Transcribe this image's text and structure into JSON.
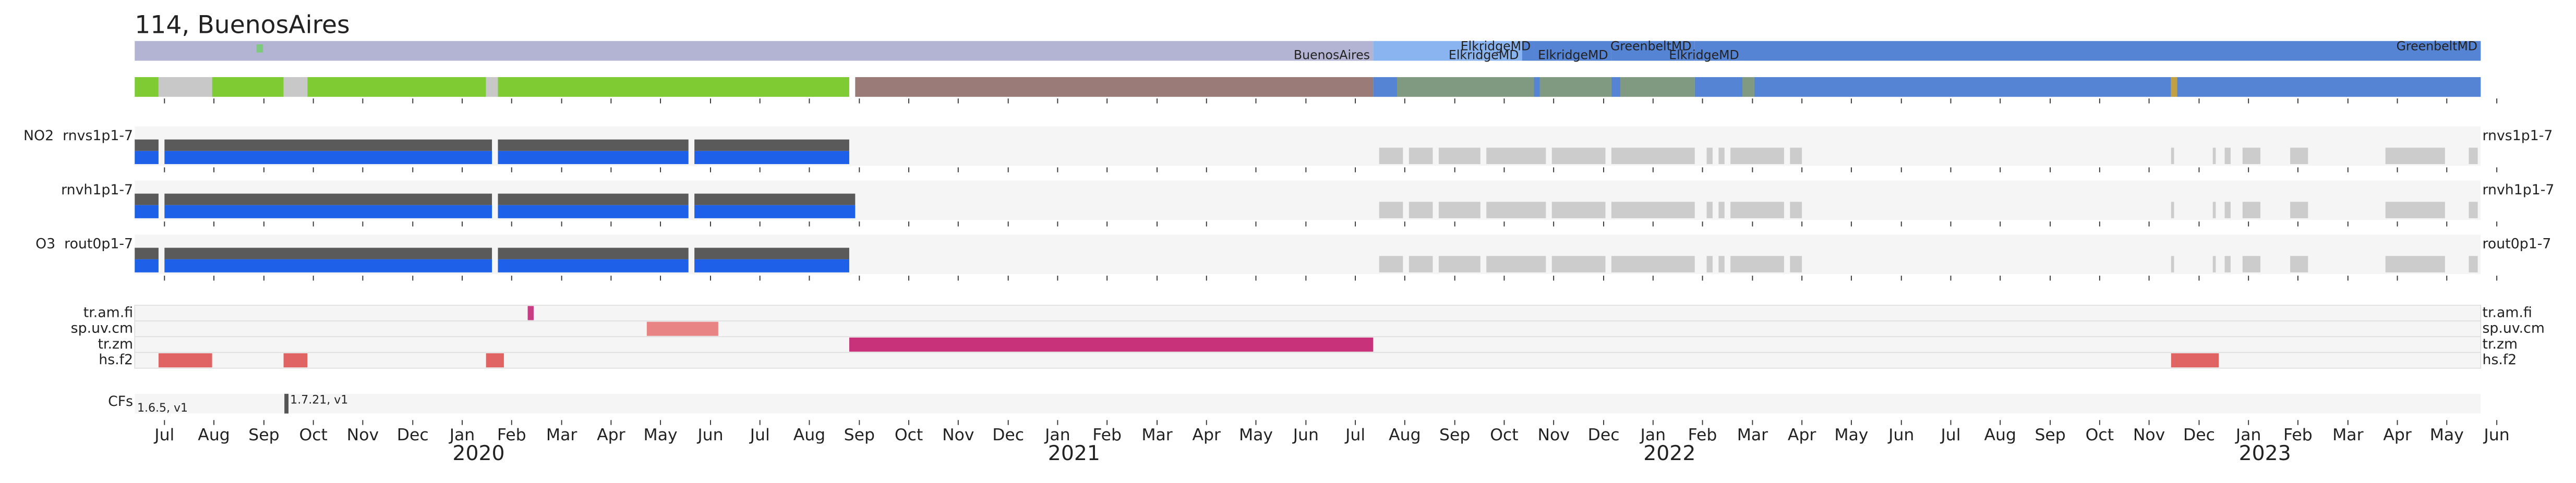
{
  "chart_data": {
    "type": "timeline",
    "title": "114, BuenosAires",
    "xlim": [
      2019.45,
      2023.39
    ],
    "xticks": [
      {
        "value": 2019.5,
        "label": "Jul"
      },
      {
        "value": 2019.583,
        "label": "Aug"
      },
      {
        "value": 2019.667,
        "label": "Sep"
      },
      {
        "value": 2019.75,
        "label": "Oct"
      },
      {
        "value": 2019.833,
        "label": "Nov"
      },
      {
        "value": 2019.917,
        "label": "Dec"
      },
      {
        "value": 2020,
        "label": "Jan"
      },
      {
        "value": 2020.083,
        "label": "Feb"
      },
      {
        "value": 2020.167,
        "label": "Mar"
      },
      {
        "value": 2020.25,
        "label": "Apr"
      },
      {
        "value": 2020.333,
        "label": "May"
      },
      {
        "value": 2020.417,
        "label": "Jun"
      },
      {
        "value": 2020.5,
        "label": "Jul"
      },
      {
        "value": 2020.583,
        "label": "Aug"
      },
      {
        "value": 2020.667,
        "label": "Sep"
      },
      {
        "value": 2020.75,
        "label": "Oct"
      },
      {
        "value": 2020.833,
        "label": "Nov"
      },
      {
        "value": 2020.917,
        "label": "Dec"
      },
      {
        "value": 2021,
        "label": "Jan"
      },
      {
        "value": 2021.083,
        "label": "Feb"
      },
      {
        "value": 2021.167,
        "label": "Mar"
      },
      {
        "value": 2021.25,
        "label": "Apr"
      },
      {
        "value": 2021.333,
        "label": "May"
      },
      {
        "value": 2021.417,
        "label": "Jun"
      },
      {
        "value": 2021.5,
        "label": "Jul"
      },
      {
        "value": 2021.583,
        "label": "Aug"
      },
      {
        "value": 2021.667,
        "label": "Sep"
      },
      {
        "value": 2021.75,
        "label": "Oct"
      },
      {
        "value": 2021.833,
        "label": "Nov"
      },
      {
        "value": 2021.917,
        "label": "Dec"
      },
      {
        "value": 2022,
        "label": "Jan"
      },
      {
        "value": 2022.083,
        "label": "Feb"
      },
      {
        "value": 2022.167,
        "label": "Mar"
      },
      {
        "value": 2022.25,
        "label": "Apr"
      },
      {
        "value": 2022.333,
        "label": "May"
      },
      {
        "value": 2022.417,
        "label": "Jun"
      },
      {
        "value": 2022.5,
        "label": "Jul"
      },
      {
        "value": 2022.583,
        "label": "Aug"
      },
      {
        "value": 2022.667,
        "label": "Sep"
      },
      {
        "value": 2022.75,
        "label": "Oct"
      },
      {
        "value": 2022.833,
        "label": "Nov"
      },
      {
        "value": 2022.917,
        "label": "Dec"
      },
      {
        "value": 2023,
        "label": "Jan"
      },
      {
        "value": 2023.083,
        "label": "Feb"
      },
      {
        "value": 2023.167,
        "label": "Mar"
      },
      {
        "value": 2023.25,
        "label": "Apr"
      },
      {
        "value": 2023.333,
        "label": "May"
      },
      {
        "value": 2023.417,
        "label": "Jun"
      }
    ],
    "years": [
      2020,
      2021,
      2022,
      2023
    ],
    "site_row": {
      "segments": [
        {
          "name": "BuenosAires",
          "start": 2019.45,
          "end": 2021.53,
          "color": "#b3b3d3"
        },
        {
          "name": "ElkridgeMD",
          "start": 2021.53,
          "end": 2021.78,
          "color": "#8ab4f0"
        },
        {
          "name": "ElkridgeMD",
          "start": 2021.78,
          "end": 2021.8,
          "color": "#5584d4"
        },
        {
          "name": "ElkridgeMD",
          "start": 2021.8,
          "end": 2021.93,
          "color": "#5584d4"
        },
        {
          "name": "GreenbeltMD",
          "start": 2021.93,
          "end": 2022.07,
          "color": "#5584d4"
        },
        {
          "name": "ElkridgeMD",
          "start": 2022.07,
          "end": 2022.15,
          "color": "#5584d4"
        },
        {
          "name": "GreenbeltMD",
          "start": 2022.15,
          "end": 2023.39,
          "color": "#5584d4"
        }
      ],
      "markers": [
        {
          "x": 2019.66,
          "color": "#7fc97f"
        }
      ]
    },
    "status_row": {
      "segments": [
        {
          "start": 2019.45,
          "end": 2019.49,
          "color": "#7ecb34"
        },
        {
          "start": 2019.49,
          "end": 2019.58,
          "color": "#c8c8c8"
        },
        {
          "start": 2019.58,
          "end": 2019.7,
          "color": "#7ecb34"
        },
        {
          "start": 2019.7,
          "end": 2019.74,
          "color": "#c8c8c8"
        },
        {
          "start": 2019.74,
          "end": 2020.04,
          "color": "#7ecb34"
        },
        {
          "start": 2020.04,
          "end": 2020.06,
          "color": "#c8c8c8"
        },
        {
          "start": 2020.06,
          "end": 2020.65,
          "color": "#7ecb34"
        },
        {
          "start": 2020.66,
          "end": 2021.53,
          "color": "#9a7b78"
        },
        {
          "start": 2021.53,
          "end": 2021.57,
          "color": "#5584d4"
        },
        {
          "start": 2021.57,
          "end": 2021.8,
          "color": "#7f9a80"
        },
        {
          "start": 2021.8,
          "end": 2021.81,
          "color": "#5584d4"
        },
        {
          "start": 2021.81,
          "end": 2021.93,
          "color": "#7f9a80"
        },
        {
          "start": 2021.93,
          "end": 2021.945,
          "color": "#5584d4"
        },
        {
          "start": 2021.945,
          "end": 2022.07,
          "color": "#7f9a80"
        },
        {
          "start": 2022.07,
          "end": 2022.15,
          "color": "#5584d4"
        },
        {
          "start": 2022.15,
          "end": 2022.17,
          "color": "#7f9a80"
        },
        {
          "start": 2022.17,
          "end": 2022.87,
          "color": "#5584d4"
        },
        {
          "start": 2022.87,
          "end": 2022.88,
          "color": "#c0a040"
        },
        {
          "start": 2022.88,
          "end": 2023.39,
          "color": "#5584d4"
        }
      ]
    },
    "data_rows": [
      {
        "label": "NO2  rnvs1p1-7",
        "label_right": "rnvs1p1-7",
        "data": [
          [
            2019.45,
            2019.49
          ],
          [
            2019.5,
            2020.05
          ],
          [
            2020.06,
            2020.38
          ],
          [
            2020.39,
            2020.65
          ]
        ],
        "missing": [
          [
            2021.54,
            2021.58
          ],
          [
            2021.59,
            2021.63
          ],
          [
            2021.64,
            2021.71
          ],
          [
            2021.72,
            2021.82
          ],
          [
            2021.83,
            2021.92
          ],
          [
            2021.93,
            2022.07
          ],
          [
            2022.09,
            2022.1
          ],
          [
            2022.11,
            2022.12
          ],
          [
            2022.13,
            2022.22
          ],
          [
            2022.23,
            2022.25
          ],
          [
            2022.87,
            2022.875
          ],
          [
            2022.94,
            2022.945
          ],
          [
            2022.96,
            2022.97
          ],
          [
            2022.99,
            2023.02
          ],
          [
            2023.07,
            2023.1
          ],
          [
            2023.23,
            2023.33
          ],
          [
            2023.37,
            2023.385
          ]
        ]
      },
      {
        "label": "rnvh1p1-7",
        "label_right": "rnvh1p1-7",
        "data": [
          [
            2019.45,
            2019.49
          ],
          [
            2019.5,
            2020.05
          ],
          [
            2020.06,
            2020.38
          ],
          [
            2020.39,
            2020.66
          ]
        ],
        "missing": [
          [
            2021.54,
            2021.58
          ],
          [
            2021.59,
            2021.63
          ],
          [
            2021.64,
            2021.71
          ],
          [
            2021.72,
            2021.82
          ],
          [
            2021.83,
            2021.92
          ],
          [
            2021.93,
            2022.07
          ],
          [
            2022.09,
            2022.1
          ],
          [
            2022.11,
            2022.12
          ],
          [
            2022.13,
            2022.22
          ],
          [
            2022.23,
            2022.25
          ],
          [
            2022.87,
            2022.875
          ],
          [
            2022.94,
            2022.945
          ],
          [
            2022.96,
            2022.97
          ],
          [
            2022.99,
            2023.02
          ],
          [
            2023.07,
            2023.1
          ],
          [
            2023.23,
            2023.33
          ],
          [
            2023.37,
            2023.385
          ]
        ]
      },
      {
        "label": "O3  rout0p1-7",
        "label_right": "rout0p1-7",
        "data": [
          [
            2019.45,
            2019.49
          ],
          [
            2019.5,
            2020.05
          ],
          [
            2020.06,
            2020.38
          ],
          [
            2020.39,
            2020.65
          ]
        ],
        "missing": [
          [
            2021.54,
            2021.58
          ],
          [
            2021.59,
            2021.63
          ],
          [
            2021.64,
            2021.71
          ],
          [
            2021.72,
            2021.82
          ],
          [
            2021.83,
            2021.92
          ],
          [
            2021.93,
            2022.07
          ],
          [
            2022.09,
            2022.1
          ],
          [
            2022.11,
            2022.12
          ],
          [
            2022.13,
            2022.22
          ],
          [
            2022.23,
            2022.25
          ],
          [
            2022.87,
            2022.875
          ],
          [
            2022.94,
            2022.945
          ],
          [
            2022.96,
            2022.97
          ],
          [
            2022.99,
            2023.02
          ],
          [
            2023.07,
            2023.1
          ],
          [
            2023.23,
            2023.33
          ],
          [
            2023.37,
            2023.385
          ]
        ]
      }
    ],
    "flag_rows": [
      {
        "label": "tr.am.fi",
        "color": "#c83c82",
        "segments": [
          [
            2020.11,
            2020.12
          ]
        ]
      },
      {
        "label": "sp.uv.cm",
        "color": "#e88484",
        "segments": [
          [
            2020.31,
            2020.43
          ]
        ]
      },
      {
        "label": "tr.zm",
        "color": "#c8327a",
        "segments": [
          [
            2020.65,
            2021.53
          ]
        ]
      },
      {
        "label": "hs.f2",
        "color": "#e06464",
        "segments": [
          [
            2019.49,
            2019.58
          ],
          [
            2019.7,
            2019.74
          ],
          [
            2020.04,
            2020.07
          ],
          [
            2022.87,
            2022.95
          ]
        ]
      }
    ],
    "cfs_row": {
      "label": "CFs",
      "entries": [
        {
          "start": 2019.45,
          "label": "1.6.5, v1"
        },
        {
          "start": 2019.7,
          "label": "1.7.21, v1"
        }
      ]
    }
  }
}
